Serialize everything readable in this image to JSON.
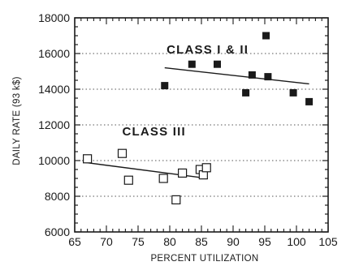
{
  "chart_data": {
    "type": "scatter",
    "xlabel": "PERCENT UTILIZATION",
    "ylabel": "DAILY RATE (93 k$)",
    "xlim": [
      65,
      105
    ],
    "ylim": [
      6000,
      18000
    ],
    "x_ticks": [
      "65",
      "70",
      "75",
      "80",
      "85",
      "90",
      "95",
      "100",
      "105"
    ],
    "y_ticks": [
      "6000",
      "8000",
      "10000",
      "12000",
      "14000",
      "16000",
      "18000"
    ],
    "grid": "horizontal dotted",
    "series": [
      {
        "name": "CLASS I & II",
        "marker": "filled-square",
        "color": "#1a1a1a",
        "points": [
          {
            "x": 79.2,
            "y": 14200
          },
          {
            "x": 83.5,
            "y": 15400
          },
          {
            "x": 87.5,
            "y": 15400
          },
          {
            "x": 92.0,
            "y": 13800
          },
          {
            "x": 93.0,
            "y": 14800
          },
          {
            "x": 95.2,
            "y": 17000
          },
          {
            "x": 95.5,
            "y": 14700
          },
          {
            "x": 99.5,
            "y": 13800
          },
          {
            "x": 102.0,
            "y": 13300
          }
        ],
        "trend": {
          "x": [
            79.2,
            102.0
          ],
          "y": [
            15200,
            14300
          ]
        }
      },
      {
        "name": "CLASS III",
        "marker": "open-square",
        "color": "#1a1a1a",
        "points": [
          {
            "x": 67.0,
            "y": 10100
          },
          {
            "x": 72.5,
            "y": 10400
          },
          {
            "x": 73.5,
            "y": 8900
          },
          {
            "x": 79.0,
            "y": 9000
          },
          {
            "x": 81.0,
            "y": 7800
          },
          {
            "x": 82.0,
            "y": 9300
          },
          {
            "x": 84.8,
            "y": 9500
          },
          {
            "x": 85.3,
            "y": 9200
          },
          {
            "x": 85.8,
            "y": 9600
          }
        ],
        "trend": {
          "x": [
            66.5,
            86.0
          ],
          "y": [
            9900,
            9000
          ]
        }
      }
    ],
    "annotations": [
      {
        "text": "CLASS I & II",
        "x": 79.5,
        "y": 16000
      },
      {
        "text": "CLASS III",
        "x": 72.5,
        "y": 11400
      }
    ]
  }
}
